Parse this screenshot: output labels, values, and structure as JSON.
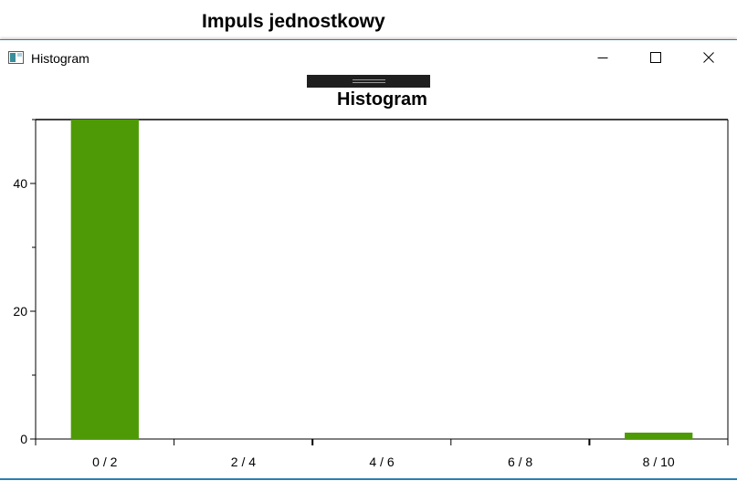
{
  "background_window": {
    "title": "Impuls jednostkowy"
  },
  "window": {
    "title": "Histogram",
    "controls": {
      "minimize_icon": "minimize-icon",
      "maximize_icon": "maximize-icon",
      "close_icon": "close-icon"
    }
  },
  "chart_data": {
    "type": "bar",
    "title": "Histogram",
    "categories": [
      "0 / 2",
      "2 / 4",
      "4 / 6",
      "6 / 8",
      "8 / 10"
    ],
    "values": [
      50,
      0,
      0,
      0,
      1
    ],
    "ylim": [
      0,
      50
    ],
    "y_ticks": [
      0,
      20,
      40
    ],
    "xlabel": "",
    "ylabel": "",
    "grid": false,
    "bar_color": "#4e9a06"
  }
}
